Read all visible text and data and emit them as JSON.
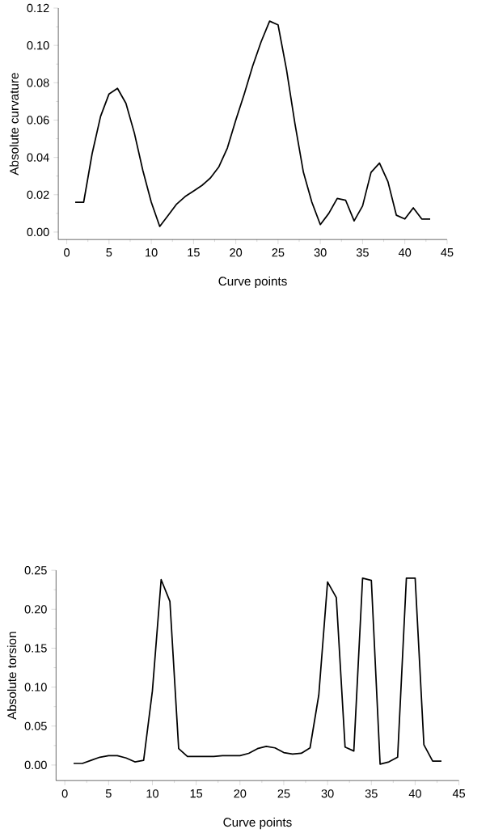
{
  "chart_data": [
    {
      "type": "line",
      "xlabel": "Curve points",
      "ylabel": "Absolute curvature",
      "color": "#000000",
      "line_style": "solid",
      "x": [
        1,
        2,
        3,
        4,
        5,
        6,
        7,
        8,
        9,
        10,
        11,
        12,
        13,
        14,
        15,
        16,
        17,
        18,
        19,
        20,
        21,
        22,
        23,
        24,
        25,
        26,
        27,
        28,
        29,
        30,
        31,
        32,
        33,
        34,
        35,
        36,
        37,
        38,
        39,
        40,
        41,
        42,
        43
      ],
      "values": [
        0.016,
        0.016,
        0.042,
        0.062,
        0.074,
        0.077,
        0.069,
        0.053,
        0.033,
        0.016,
        0.003,
        0.009,
        0.015,
        0.019,
        0.022,
        0.025,
        0.029,
        0.035,
        0.045,
        0.06,
        0.074,
        0.089,
        0.102,
        0.113,
        0.111,
        0.087,
        0.058,
        0.032,
        0.016,
        0.004,
        0.01,
        0.018,
        0.017,
        0.006,
        0.014,
        0.032,
        0.037,
        0.027,
        0.009,
        0.007,
        0.013,
        0.007,
        0.007
      ],
      "xlim": [
        -1,
        45
      ],
      "ylim": [
        -0.004,
        0.12
      ],
      "xticks": [
        0,
        5,
        10,
        15,
        20,
        25,
        30,
        35,
        40,
        45
      ],
      "yticks": [
        {
          "value": 0,
          "label": "0.00"
        },
        {
          "value": 0.02,
          "label": "0.02"
        },
        {
          "value": 0.04,
          "label": "0.04"
        },
        {
          "value": 0.06,
          "label": "0.06"
        },
        {
          "value": 0.08,
          "label": "0.08"
        },
        {
          "value": 0.1,
          "label": "0.10"
        },
        {
          "value": 0.12,
          "label": "0.12"
        }
      ]
    },
    {
      "type": "line",
      "xlabel": "Curve points",
      "ylabel": "Absolute torsion",
      "color": "#000000",
      "line_style": "solid",
      "x": [
        1,
        2,
        3,
        4,
        5,
        6,
        7,
        8,
        9,
        10,
        11,
        12,
        13,
        14,
        15,
        16,
        17,
        18,
        19,
        20,
        21,
        22,
        23,
        24,
        25,
        26,
        27,
        28,
        29,
        30,
        31,
        32,
        33,
        34,
        35,
        36,
        37,
        38,
        39,
        40,
        41,
        42,
        43
      ],
      "values": [
        0.002,
        0.002,
        0.006,
        0.01,
        0.012,
        0.012,
        0.009,
        0.004,
        0.006,
        0.095,
        0.238,
        0.21,
        0.021,
        0.011,
        0.011,
        0.011,
        0.011,
        0.012,
        0.012,
        0.012,
        0.015,
        0.021,
        0.024,
        0.022,
        0.016,
        0.014,
        0.015,
        0.022,
        0.09,
        0.235,
        0.215,
        0.023,
        0.018,
        0.24,
        0.237,
        0.001,
        0.004,
        0.01,
        0.24,
        0.24,
        0.026,
        0.005,
        0.005
      ],
      "xlim": [
        -1,
        45
      ],
      "ylim": [
        -0.02,
        0.25
      ],
      "xticks": [
        0,
        5,
        10,
        15,
        20,
        25,
        30,
        35,
        40,
        45
      ],
      "yticks": [
        {
          "value": 0,
          "label": "0.00"
        },
        {
          "value": 0.05,
          "label": "0.05"
        },
        {
          "value": 0.1,
          "label": "0.10"
        },
        {
          "value": 0.15,
          "label": "0.15"
        },
        {
          "value": 0.2,
          "label": "0.20"
        },
        {
          "value": 0.25,
          "label": "0.25"
        }
      ]
    }
  ]
}
